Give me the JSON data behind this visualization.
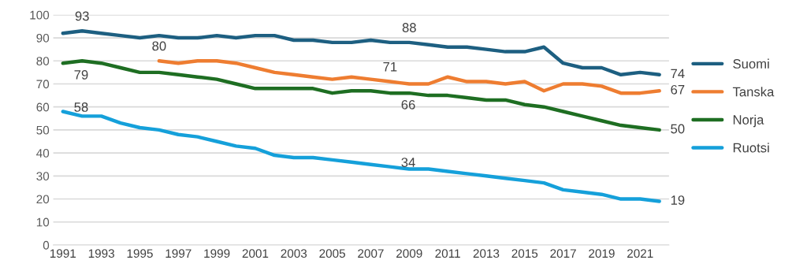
{
  "chart_data": {
    "type": "line",
    "categories": [
      "1991",
      null,
      "1993",
      null,
      "1995",
      null,
      "1997",
      null,
      "1999",
      null,
      "2001",
      null,
      "2003",
      null,
      "2005",
      null,
      "2007",
      null,
      "2009",
      null,
      "2011",
      null,
      "2013",
      null,
      "2015",
      null,
      "2017",
      null,
      "2019",
      null,
      "2021",
      null
    ],
    "series": [
      {
        "name": "Suomi",
        "color": "#1d5f81",
        "values": [
          92,
          93,
          92,
          91,
          90,
          91,
          90,
          90,
          91,
          90,
          91,
          91,
          89,
          89,
          88,
          88,
          89,
          88,
          88,
          87,
          86,
          86,
          85,
          84,
          84,
          86,
          79,
          77,
          77,
          74,
          75,
          74
        ],
        "value_labels": [
          null,
          "93",
          null,
          null,
          null,
          null,
          null,
          null,
          null,
          null,
          null,
          null,
          null,
          null,
          null,
          null,
          null,
          null,
          "88",
          null,
          null,
          null,
          null,
          null,
          null,
          null,
          null,
          null,
          null,
          null,
          null,
          "74"
        ]
      },
      {
        "name": "Tanska",
        "color": "#ee7d31",
        "values": [
          null,
          null,
          null,
          null,
          null,
          80,
          79,
          80,
          80,
          79,
          77,
          75,
          74,
          73,
          72,
          73,
          72,
          71,
          70,
          70,
          73,
          71,
          71,
          70,
          71,
          67,
          70,
          70,
          69,
          66,
          66,
          67
        ],
        "value_labels": [
          null,
          null,
          null,
          null,
          null,
          "80",
          null,
          null,
          null,
          null,
          null,
          null,
          null,
          null,
          null,
          null,
          null,
          "71",
          null,
          null,
          null,
          null,
          null,
          null,
          null,
          null,
          null,
          null,
          null,
          null,
          null,
          "67"
        ]
      },
      {
        "name": "Norja",
        "color": "#1e6e22",
        "values": [
          79,
          80,
          79,
          77,
          75,
          75,
          74,
          73,
          72,
          70,
          68,
          68,
          68,
          68,
          66,
          67,
          67,
          66,
          66,
          65,
          65,
          64,
          63,
          63,
          61,
          60,
          58,
          56,
          54,
          52,
          51,
          50
        ],
        "value_labels": [
          "79",
          null,
          null,
          null,
          null,
          null,
          null,
          null,
          null,
          null,
          null,
          null,
          null,
          null,
          null,
          null,
          null,
          "66",
          null,
          null,
          null,
          null,
          null,
          null,
          null,
          null,
          null,
          null,
          null,
          null,
          null,
          "50"
        ]
      },
      {
        "name": "Ruotsi",
        "color": "#15a0da",
        "values": [
          58,
          56,
          56,
          53,
          51,
          50,
          48,
          47,
          45,
          43,
          42,
          39,
          38,
          38,
          37,
          36,
          35,
          34,
          33,
          33,
          32,
          31,
          30,
          29,
          28,
          27,
          24,
          23,
          22,
          20,
          20,
          19
        ],
        "value_labels": [
          "58",
          null,
          null,
          null,
          null,
          null,
          null,
          null,
          null,
          null,
          null,
          null,
          null,
          null,
          null,
          null,
          null,
          "34",
          null,
          null,
          null,
          null,
          null,
          null,
          null,
          null,
          null,
          null,
          null,
          null,
          null,
          "19"
        ]
      }
    ],
    "ylim": [
      0,
      100
    ],
    "yticks": [
      0,
      10,
      20,
      30,
      40,
      50,
      60,
      70,
      80,
      90,
      100
    ],
    "grid": "y",
    "legend": "right",
    "marker": "none",
    "line_style": "solid"
  }
}
